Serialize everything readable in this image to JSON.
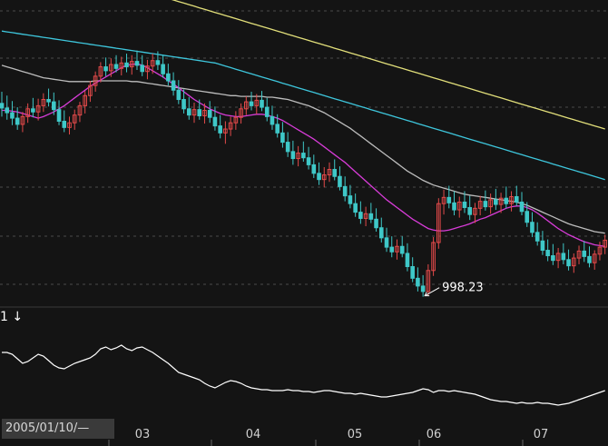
{
  "indicator": {
    "label": "1 ↓"
  },
  "cursor_date": "2005/01/10/—",
  "colors": {
    "up": "#e34a4a",
    "down": "#3fc8c8",
    "ma_short": "#d83cd8",
    "ma_mid": "#bdbdbd",
    "ma_long": "#3ec6dc",
    "ma_longest": "#e2df7a",
    "indicator_line": "#ffffff",
    "grid": "#4a4a4a"
  },
  "chart_data": {
    "type": "candlestick",
    "x_ticks": [
      "03",
      "04",
      "05",
      "06",
      "07"
    ],
    "annotation": {
      "text": "998.23",
      "value": 998.23,
      "position": "lowest-low"
    },
    "y_range": [
      985,
      1380
    ],
    "grid": true,
    "ohlc": [
      [
        1247,
        1262,
        1230,
        1241
      ],
      [
        1241,
        1257,
        1226,
        1235
      ],
      [
        1235,
        1250,
        1219,
        1228
      ],
      [
        1228,
        1242,
        1213,
        1220
      ],
      [
        1220,
        1236,
        1210,
        1230
      ],
      [
        1230,
        1247,
        1222,
        1240
      ],
      [
        1240,
        1254,
        1229,
        1236
      ],
      [
        1236,
        1253,
        1225,
        1244
      ],
      [
        1244,
        1260,
        1236,
        1252
      ],
      [
        1252,
        1266,
        1243,
        1249
      ],
      [
        1249,
        1261,
        1232,
        1239
      ],
      [
        1239,
        1251,
        1219,
        1224
      ],
      [
        1224,
        1238,
        1210,
        1216
      ],
      [
        1216,
        1230,
        1207,
        1222
      ],
      [
        1222,
        1239,
        1213,
        1232
      ],
      [
        1232,
        1249,
        1223,
        1244
      ],
      [
        1244,
        1263,
        1234,
        1257
      ],
      [
        1257,
        1276,
        1249,
        1270
      ],
      [
        1270,
        1288,
        1262,
        1282
      ],
      [
        1282,
        1300,
        1274,
        1294
      ],
      [
        1294,
        1306,
        1282,
        1289
      ],
      [
        1289,
        1305,
        1281,
        1297
      ],
      [
        1297,
        1309,
        1287,
        1292
      ],
      [
        1292,
        1307,
        1283,
        1299
      ],
      [
        1299,
        1311,
        1287,
        1294
      ],
      [
        1294,
        1309,
        1284,
        1301
      ],
      [
        1301,
        1315,
        1290,
        1296
      ],
      [
        1296,
        1309,
        1282,
        1288
      ],
      [
        1288,
        1303,
        1278,
        1295
      ],
      [
        1295,
        1311,
        1285,
        1302
      ],
      [
        1302,
        1314,
        1290,
        1297
      ],
      [
        1297,
        1309,
        1280,
        1285
      ],
      [
        1285,
        1298,
        1270,
        1276
      ],
      [
        1276,
        1287,
        1257,
        1264
      ],
      [
        1264,
        1277,
        1246,
        1252
      ],
      [
        1252,
        1265,
        1234,
        1240
      ],
      [
        1240,
        1255,
        1226,
        1232
      ],
      [
        1232,
        1248,
        1222,
        1239
      ],
      [
        1239,
        1252,
        1226,
        1231
      ],
      [
        1231,
        1247,
        1221,
        1238
      ],
      [
        1238,
        1250,
        1222,
        1229
      ],
      [
        1229,
        1243,
        1212,
        1218
      ],
      [
        1218,
        1232,
        1202,
        1209
      ],
      [
        1209,
        1224,
        1195,
        1214
      ],
      [
        1214,
        1230,
        1205,
        1222
      ],
      [
        1222,
        1237,
        1213,
        1229
      ],
      [
        1229,
        1247,
        1221,
        1240
      ],
      [
        1240,
        1256,
        1232,
        1249
      ],
      [
        1249,
        1262,
        1238,
        1244
      ],
      [
        1244,
        1259,
        1233,
        1251
      ],
      [
        1251,
        1263,
        1237,
        1242
      ],
      [
        1242,
        1254,
        1224,
        1230
      ],
      [
        1230,
        1244,
        1213,
        1220
      ],
      [
        1220,
        1233,
        1203,
        1209
      ],
      [
        1209,
        1223,
        1190,
        1197
      ],
      [
        1197,
        1210,
        1178,
        1185
      ],
      [
        1185,
        1199,
        1168,
        1176
      ],
      [
        1176,
        1192,
        1166,
        1183
      ],
      [
        1183,
        1198,
        1172,
        1177
      ],
      [
        1177,
        1191,
        1162,
        1168
      ],
      [
        1168,
        1181,
        1151,
        1157
      ],
      [
        1157,
        1171,
        1142,
        1149
      ],
      [
        1149,
        1165,
        1139,
        1155
      ],
      [
        1155,
        1171,
        1146,
        1162
      ],
      [
        1162,
        1175,
        1148,
        1153
      ],
      [
        1153,
        1166,
        1135,
        1140
      ],
      [
        1140,
        1153,
        1121,
        1128
      ],
      [
        1128,
        1142,
        1112,
        1118
      ],
      [
        1118,
        1131,
        1101,
        1107
      ],
      [
        1107,
        1121,
        1092,
        1099
      ],
      [
        1099,
        1114,
        1089,
        1105
      ],
      [
        1105,
        1119,
        1093,
        1098
      ],
      [
        1098,
        1112,
        1082,
        1087
      ],
      [
        1087,
        1100,
        1068,
        1074
      ],
      [
        1074,
        1087,
        1056,
        1062
      ],
      [
        1062,
        1076,
        1049,
        1056
      ],
      [
        1056,
        1072,
        1046,
        1063
      ],
      [
        1063,
        1076,
        1049,
        1054
      ],
      [
        1054,
        1067,
        1031,
        1037
      ],
      [
        1037,
        1049,
        1017,
        1022
      ],
      [
        1022,
        1036,
        1005,
        1012
      ],
      [
        1012,
        1026,
        998.23,
        1005
      ],
      [
        1005,
        1040,
        1000,
        1032
      ],
      [
        1032,
        1075,
        1025,
        1068
      ],
      [
        1068,
        1125,
        1060,
        1118
      ],
      [
        1118,
        1136,
        1104,
        1126
      ],
      [
        1126,
        1141,
        1112,
        1119
      ],
      [
        1119,
        1134,
        1103,
        1110
      ],
      [
        1110,
        1127,
        1100,
        1120
      ],
      [
        1120,
        1134,
        1106,
        1113
      ],
      [
        1113,
        1128,
        1097,
        1104
      ],
      [
        1104,
        1119,
        1093,
        1112
      ],
      [
        1112,
        1128,
        1103,
        1121
      ],
      [
        1121,
        1135,
        1109,
        1114
      ],
      [
        1114,
        1131,
        1105,
        1123
      ],
      [
        1123,
        1137,
        1110,
        1117
      ],
      [
        1117,
        1132,
        1106,
        1125
      ],
      [
        1125,
        1140,
        1112,
        1118
      ],
      [
        1118,
        1134,
        1108,
        1127
      ],
      [
        1127,
        1141,
        1115,
        1120
      ],
      [
        1120,
        1133,
        1103,
        1108
      ],
      [
        1108,
        1120,
        1088,
        1094
      ],
      [
        1094,
        1107,
        1075,
        1081
      ],
      [
        1081,
        1094,
        1064,
        1070
      ],
      [
        1070,
        1083,
        1052,
        1058
      ],
      [
        1058,
        1072,
        1044,
        1051
      ],
      [
        1051,
        1066,
        1039,
        1045
      ],
      [
        1045,
        1061,
        1035,
        1054
      ],
      [
        1054,
        1067,
        1040,
        1046
      ],
      [
        1046,
        1059,
        1032,
        1038
      ],
      [
        1038,
        1054,
        1029,
        1048
      ],
      [
        1048,
        1064,
        1040,
        1057
      ],
      [
        1057,
        1070,
        1043,
        1050
      ],
      [
        1050,
        1063,
        1036,
        1042
      ],
      [
        1042,
        1058,
        1033,
        1053
      ],
      [
        1053,
        1069,
        1045,
        1062
      ],
      [
        1062,
        1078,
        1053,
        1071
      ]
    ],
    "ma_short": [
      1238,
      1238,
      1237,
      1236,
      1234,
      1232,
      1230,
      1228,
      1230,
      1233,
      1236,
      1240,
      1244,
      1249,
      1254,
      1259,
      1264,
      1269,
      1273,
      1277,
      1281,
      1285,
      1289,
      1293,
      1296,
      1297,
      1298,
      1296,
      1293,
      1289,
      1285,
      1281,
      1276,
      1272,
      1267,
      1262,
      1257,
      1252,
      1248,
      1244,
      1240,
      1237,
      1234,
      1232,
      1231,
      1230,
      1230,
      1231,
      1232,
      1233,
      1233,
      1232,
      1230,
      1228,
      1225,
      1221,
      1217,
      1213,
      1209,
      1205,
      1201,
      1196,
      1191,
      1186,
      1181,
      1176,
      1171,
      1165,
      1159,
      1153,
      1147,
      1141,
      1135,
      1129,
      1123,
      1118,
      1113,
      1108,
      1103,
      1098,
      1094,
      1090,
      1086,
      1084,
      1083,
      1083,
      1084,
      1086,
      1088,
      1090,
      1092,
      1095,
      1098,
      1100,
      1103,
      1106,
      1109,
      1112,
      1114,
      1115,
      1115,
      1113,
      1110,
      1106,
      1101,
      1096,
      1091,
      1086,
      1082,
      1078,
      1075,
      1072,
      1069,
      1067,
      1065,
      1064,
      1063
    ],
    "ma_mid": [
      1296,
      1294,
      1292,
      1290,
      1288,
      1286,
      1284,
      1282,
      1280,
      1279,
      1278,
      1277,
      1276,
      1275,
      1275,
      1275,
      1275,
      1275,
      1276,
      1276,
      1276,
      1276,
      1276,
      1276,
      1276,
      1275,
      1275,
      1274,
      1273,
      1272,
      1271,
      1270,
      1269,
      1268,
      1267,
      1266,
      1265,
      1264,
      1263,
      1262,
      1261,
      1260,
      1259,
      1258,
      1257,
      1257,
      1256,
      1256,
      1256,
      1256,
      1256,
      1255,
      1255,
      1254,
      1253,
      1252,
      1250,
      1248,
      1246,
      1244,
      1241,
      1238,
      1235,
      1231,
      1227,
      1223,
      1219,
      1215,
      1210,
      1205,
      1200,
      1195,
      1190,
      1185,
      1180,
      1175,
      1170,
      1165,
      1160,
      1156,
      1152,
      1148,
      1145,
      1142,
      1140,
      1138,
      1136,
      1134,
      1132,
      1130,
      1129,
      1128,
      1127,
      1126,
      1125,
      1124,
      1123,
      1122,
      1121,
      1120,
      1118,
      1116,
      1113,
      1110,
      1107,
      1104,
      1101,
      1098,
      1095,
      1092,
      1090,
      1088,
      1086,
      1084,
      1082,
      1081,
      1080
    ],
    "ma_long": [
      1340,
      1339,
      1338,
      1337,
      1336,
      1335,
      1334,
      1333,
      1332,
      1331,
      1330,
      1329,
      1328,
      1327,
      1326,
      1325,
      1324,
      1323,
      1322,
      1321,
      1320,
      1319,
      1318,
      1317,
      1316,
      1315,
      1314,
      1313,
      1312,
      1311,
      1310,
      1309,
      1308,
      1307,
      1306,
      1305,
      1304,
      1303,
      1302,
      1301,
      1300,
      1299,
      1297,
      1295,
      1293,
      1291,
      1289,
      1287,
      1285,
      1283,
      1281,
      1279,
      1277,
      1275,
      1273,
      1271,
      1269,
      1267,
      1265,
      1263,
      1261,
      1259,
      1257,
      1255,
      1253,
      1251,
      1249,
      1247,
      1245,
      1243,
      1241,
      1239,
      1237,
      1235,
      1233,
      1231,
      1229,
      1227,
      1225,
      1223,
      1221,
      1219,
      1217,
      1215,
      1213,
      1211,
      1209,
      1207,
      1205,
      1203,
      1201,
      1199,
      1197,
      1195,
      1193,
      1191,
      1189,
      1187,
      1185,
      1183,
      1181,
      1179,
      1177,
      1175,
      1173,
      1171,
      1169,
      1167,
      1165,
      1163,
      1161,
      1159,
      1157,
      1155,
      1153,
      1151,
      1149
    ],
    "ma_longest": [
      1446,
      1444,
      1442,
      1440,
      1438,
      1436,
      1434,
      1432,
      1430,
      1428,
      1426,
      1424,
      1422,
      1420,
      1418,
      1416,
      1414,
      1412,
      1410,
      1408,
      1406,
      1404,
      1402,
      1400,
      1398,
      1396,
      1394,
      1392,
      1390,
      1388,
      1386,
      1384,
      1382,
      1380,
      1378,
      1376,
      1374,
      1372,
      1370,
      1368,
      1366,
      1364,
      1362,
      1360,
      1358,
      1356,
      1354,
      1352,
      1350,
      1348,
      1346,
      1344,
      1342,
      1340,
      1338,
      1336,
      1334,
      1332,
      1330,
      1328,
      1326,
      1324,
      1322,
      1320,
      1318,
      1316,
      1314,
      1312,
      1310,
      1308,
      1306,
      1304,
      1302,
      1300,
      1298,
      1296,
      1294,
      1292,
      1290,
      1288,
      1286,
      1284,
      1282,
      1280,
      1278,
      1276,
      1274,
      1272,
      1270,
      1268,
      1266,
      1264,
      1262,
      1260,
      1258,
      1256,
      1254,
      1252,
      1250,
      1248,
      1246,
      1244,
      1242,
      1240,
      1238,
      1236,
      1234,
      1232,
      1230,
      1228,
      1226,
      1224,
      1222,
      1220,
      1218,
      1216,
      1214
    ],
    "indicator": {
      "y_range": [
        0,
        100
      ],
      "values": [
        72,
        72,
        70,
        65,
        60,
        62,
        66,
        70,
        68,
        63,
        58,
        55,
        54,
        57,
        60,
        62,
        64,
        66,
        70,
        76,
        78,
        75,
        77,
        80,
        76,
        74,
        77,
        78,
        75,
        72,
        68,
        64,
        60,
        55,
        50,
        48,
        46,
        44,
        42,
        38,
        35,
        33,
        36,
        39,
        41,
        40,
        38,
        35,
        33,
        32,
        31,
        31,
        30,
        30,
        30,
        31,
        30,
        30,
        29,
        29,
        28,
        29,
        30,
        30,
        29,
        28,
        27,
        27,
        26,
        27,
        26,
        25,
        24,
        23,
        23,
        24,
        25,
        26,
        27,
        28,
        30,
        32,
        31,
        28,
        30,
        30,
        29,
        30,
        29,
        28,
        27,
        26,
        24,
        22,
        20,
        19,
        18,
        18,
        17,
        16,
        17,
        16,
        16,
        17,
        16,
        16,
        15,
        14,
        15,
        16,
        18,
        20,
        22,
        24,
        26,
        28,
        30
      ]
    }
  }
}
